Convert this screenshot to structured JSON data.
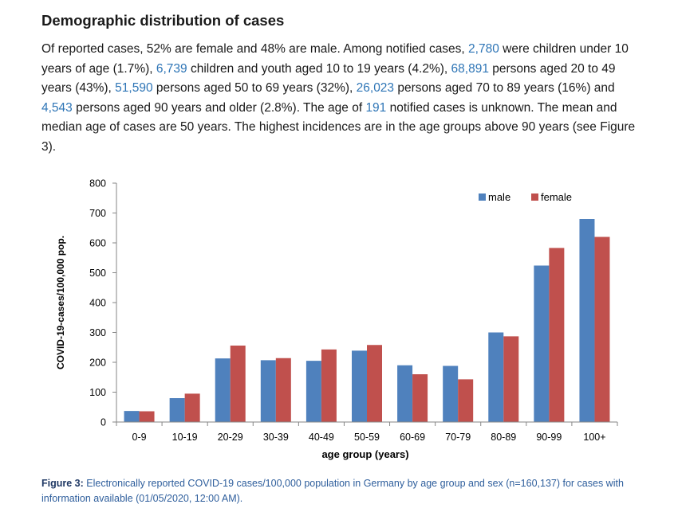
{
  "heading": "Demographic distribution of cases",
  "paragraph": {
    "s1": "Of reported cases, 52% are female and 48% are male. Among notified cases, ",
    "n1": "2,780",
    "s2": " were children under 10 years of age (1.7%), ",
    "n2": "6,739",
    "s3": " children and youth aged 10 to 19 years (4.2%), ",
    "n3": "68,891",
    "s4": " persons aged 20 to 49 years (43%), ",
    "n4": "51,590",
    "s5": " persons aged 50 to 69 years (32%), ",
    "n5": "26,023",
    "s6": " persons aged 70 to 89 years (16%) and ",
    "n6": "4,543",
    "s7": " persons aged 90 years and older (2.8%). The age of ",
    "n7": "191",
    "s8": " notified cases is unknown. The mean and median age of cases are 50 years. The highest incidences are in the age groups above 90 years (see Figure 3)."
  },
  "caption": {
    "label": "Figure 3:",
    "text": " Electronically reported COVID-19 cases/100,000 population in Germany by age group and sex (n=160,137) for cases with information available (01/05/2020, 12:00 AM)."
  },
  "colors": {
    "male": "#4f81bd",
    "female": "#c0504d",
    "link": "#2e75b6",
    "caption": "#2e5e9c"
  },
  "chart_data": {
    "type": "bar",
    "categories": [
      "0-9",
      "10-19",
      "20-29",
      "30-39",
      "40-49",
      "50-59",
      "60-69",
      "70-79",
      "80-89",
      "90-99",
      "100+"
    ],
    "series": [
      {
        "name": "male",
        "values": [
          37,
          80,
          213,
          207,
          205,
          239,
          190,
          188,
          300,
          524,
          680
        ]
      },
      {
        "name": "female",
        "values": [
          36,
          95,
          256,
          214,
          243,
          258,
          160,
          143,
          287,
          583,
          620
        ]
      }
    ],
    "yticks": [
      "0",
      "100",
      "200",
      "300",
      "400",
      "500",
      "600",
      "700",
      "800"
    ],
    "ylim": [
      0,
      800
    ],
    "xlabel": "age group (years)",
    "ylabel": "COVID-19-cases/100,000 pop.",
    "legend_position": "top-right",
    "grid": false
  }
}
